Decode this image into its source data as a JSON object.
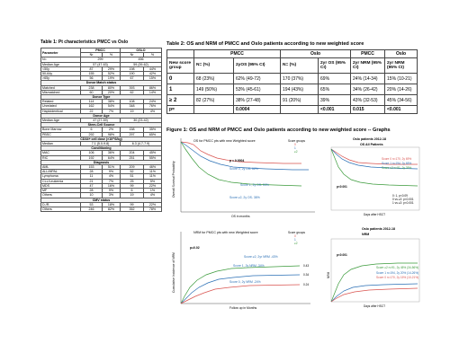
{
  "table1": {
    "title": "Table 1: Pt characteristics PMCC vs Oslo",
    "head": {
      "parameter": "Parameter",
      "pmcc": "PMCC",
      "oslo": "OSLO",
      "nr": "Nr",
      "pct": "%"
    },
    "rows": [
      {
        "t": "r",
        "c": [
          "N=",
          "299",
          "",
          "456",
          ""
        ]
      },
      {
        "t": "r",
        "c": [
          "Median Age",
          "57 (47-63)",
          "",
          "59 (39-62)",
          ""
        ]
      },
      {
        "t": "r",
        "c": [
          "<50y",
          "87",
          "29%",
          "198",
          "44%"
        ]
      },
      {
        "t": "r",
        "c": [
          "50-64y",
          "155",
          "52%",
          "190",
          "42%"
        ]
      },
      {
        "t": "r",
        "c": [
          ">65y",
          "56",
          "19%",
          "67",
          "15%"
        ]
      },
      {
        "t": "s",
        "c": [
          "Donor Match status"
        ]
      },
      {
        "t": "r",
        "c": [
          "Matched",
          "238",
          "80%",
          "393",
          "86%"
        ]
      },
      {
        "t": "r",
        "c": [
          "Mismatched",
          "60",
          "20%",
          "62",
          "14%"
        ]
      },
      {
        "t": "s",
        "c": [
          "Donor Type"
        ]
      },
      {
        "t": "r",
        "c": [
          "Related",
          "114",
          "38%",
          "108",
          "24%"
        ]
      },
      {
        "t": "r",
        "c": [
          "Unrelated",
          "162",
          "54%",
          "348",
          "76%"
        ]
      },
      {
        "t": "r",
        "c": [
          "Haploidentical",
          "22",
          "7%",
          "19",
          "4%"
        ]
      },
      {
        "t": "s",
        "c": [
          "Donor Age"
        ]
      },
      {
        "t": "r",
        "c": [
          "Median Age",
          "47 (27-59)",
          "",
          "30 (23-42)",
          ""
        ]
      },
      {
        "t": "s",
        "c": [
          "Stem-Cell Source"
        ]
      },
      {
        "t": "r",
        "c": [
          "Bone Marrow",
          "6",
          "2%",
          "158",
          "35%"
        ]
      },
      {
        "t": "r",
        "c": [
          "PBSC",
          "292",
          "98%",
          "297",
          "65%"
        ]
      },
      {
        "t": "s",
        "c": [
          "CD34+ cell dose (×10^6/kg)"
        ]
      },
      {
        "t": "r",
        "c": [
          "Median",
          "7.1 (5.0-9.8)",
          "",
          "6.3 (4.7-7.9)",
          ""
        ]
      },
      {
        "t": "s",
        "c": [
          "Conditioning"
        ]
      },
      {
        "t": "r",
        "c": [
          "MAC",
          "106",
          "36%",
          "204",
          "45%"
        ]
      },
      {
        "t": "r",
        "c": [
          "RIC",
          "192",
          "64%",
          "251",
          "55%"
        ]
      },
      {
        "t": "s",
        "c": [
          "Diagnosis"
        ]
      },
      {
        "t": "r",
        "c": [
          "AML",
          "153",
          "51%",
          "209",
          "46%"
        ]
      },
      {
        "t": "r",
        "c": [
          "ALL/MPAL",
          "28",
          "9%",
          "52",
          "11%"
        ]
      },
      {
        "t": "r",
        "c": [
          "Lymphoma",
          "11",
          "4%",
          "51",
          "11%"
        ]
      },
      {
        "t": "r",
        "c": [
          "CLL/Leukemia",
          "21",
          "7%",
          "25",
          "5%"
        ]
      },
      {
        "t": "r",
        "c": [
          "MDS",
          "47",
          "16%",
          "99",
          "22%"
        ]
      },
      {
        "t": "r",
        "c": [
          "MF",
          "28",
          "9%",
          "6",
          "1%"
        ]
      },
      {
        "t": "r",
        "c": [
          "Others",
          "10",
          "3%",
          "19",
          "4%"
        ]
      },
      {
        "t": "s",
        "c": [
          "CMV status"
        ]
      },
      {
        "t": "r",
        "c": [
          "D-/R-",
          "53",
          "18%",
          "99",
          "22%"
        ]
      },
      {
        "t": "r",
        "c": [
          "Others",
          "246",
          "82%",
          "352",
          "78%"
        ]
      }
    ]
  },
  "table2": {
    "title": "Table 2: OS and NRM of PMCC and Oslo patients according to new weighted score",
    "groups": {
      "pmcc_os": "PMCC",
      "oslo_os": "Oslo",
      "pmcc_nrm": "PMCC",
      "oslo_nrm": "Oslo"
    },
    "cols": [
      "New score group",
      "N= (%)",
      "2yOS (95% CI)",
      "N= (%)",
      "2yr OS (95% CI)",
      "2yr NRM (95% CI)",
      "2yr NRM (95% CI)"
    ],
    "rows": [
      [
        "0",
        "68 (23%)",
        "62% (49-72)",
        "170 (37%)",
        "69%",
        "24% (14-34)",
        "15% (10-21)"
      ],
      [
        "1",
        "149 (50%)",
        "53% (45-61)",
        "194 (43%)",
        "65%",
        "34% (26-42)",
        "20% (14-26)"
      ],
      [
        "≥ 2",
        "82 (27%)",
        "38% (27-48)",
        "91 (20%)",
        "39%",
        "43% (32-53)",
        "45% (34-56)"
      ],
      [
        "p=",
        "",
        "0.0004",
        "",
        "<0.001",
        "0.015",
        "<0.001"
      ]
    ]
  },
  "figure": {
    "title": "Figure 1: OS and NRM of PMCC and Oslo patients according to new weighted score -- Graphs",
    "os_pmcc": {
      "title": "OS for PMCC pts with new Weighted score",
      "legend_title": "Score groups",
      "legend": [
        "0",
        "1",
        "≥2"
      ],
      "ylabel": "Overall Survival Probability",
      "xlabel": "OS in months",
      "p": "p = 0.0004",
      "notes": [
        "Score 0, 2y OS- 62%",
        "Score 1, 2y OS- 53%",
        "Score ≥2, 2y OS- 38%"
      ]
    },
    "os_oslo": {
      "title": "Oslo patients 2012-18",
      "subtitle": "OS All Patients",
      "p": "p<0.001",
      "notes": [
        "Score 0 n=170, 2y 69%",
        "Score 1 n=194, 2y 65%",
        "Score ≥2 n=91, 2y 39%"
      ],
      "legend": [
        "0: 1, p<0.09",
        "0 vs ≥2: p<0.001",
        "1 vs ≥2: p<0.001"
      ],
      "xlabel": "Days after HSCT"
    },
    "nrm_pmcc": {
      "title": "NRM for PMCC pts with new Weighted score",
      "legend_title": "Score groups",
      "legend": [
        "0",
        "1",
        "≥2"
      ],
      "ylabel": "Cumulative Incidence of NRM",
      "xlabel": "Follow up in Months",
      "p": "p=0.02",
      "notes": [
        "Score ≥2, 2yr NRM -43%",
        "Score 1, 2y NRM -34%",
        "Score 0, 2y NRM -24%"
      ],
      "end_values": [
        "0.43",
        "0.34",
        "0.24"
      ]
    },
    "nrm_oslo": {
      "title": "Oslo patients 2012-18",
      "subtitle": "NRM",
      "p": "p<0.001",
      "notes": [
        "Score ≥2 n=91, 2y 45% (34-56%)",
        "Score 1 n=194, 2y 20% (14-26%)",
        "Score 0 n=170, 2y 15% (10-21%)"
      ],
      "ylabel": "NRM",
      "xlabel": "Days after HSCT"
    },
    "colors": {
      "s0": "#d9534f",
      "s1": "#2a6fb5",
      "s2": "#3a9a3a",
      "grey": "#777777"
    }
  }
}
